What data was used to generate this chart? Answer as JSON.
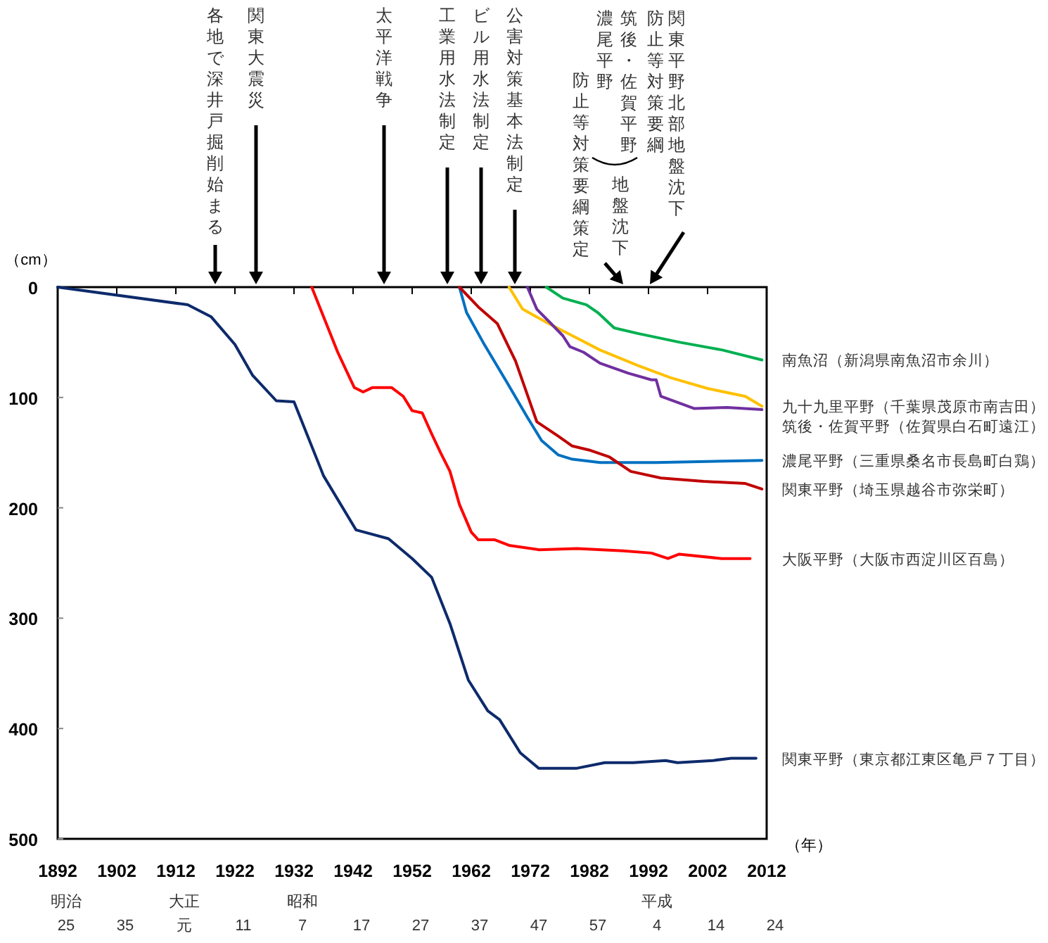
{
  "chart_data": {
    "type": "line",
    "xlabel": "（年）",
    "ylabel": "（cm）",
    "xlim": [
      1892,
      2012
    ],
    "xticks": [
      1892,
      1902,
      1912,
      1922,
      1932,
      1942,
      1952,
      1962,
      1972,
      1982,
      1992,
      2002,
      2012
    ],
    "ylim": [
      500,
      0
    ],
    "yticks": [
      0,
      100,
      200,
      300,
      400,
      500
    ],
    "series": [
      {
        "name": "南魚沼（新潟県南魚沼市余川）",
        "color": "#00b050",
        "x": [
          1974.7,
          1977.5,
          1981.5,
          1983.4,
          1986.2,
          1990.2,
          1997.3,
          2004.5,
          2011.2
        ],
        "values": [
          0,
          10,
          16,
          23,
          37,
          42,
          50,
          57,
          66
        ]
      },
      {
        "name": "九十九里平野（千葉県茂原市南吉田）",
        "color": "#ffc000",
        "x": [
          1968.4,
          1970.7,
          1975.1,
          1979.1,
          1983.8,
          1990.2,
          1995.7,
          2002.1,
          2008.4,
          2011.2
        ],
        "values": [
          0,
          20,
          33,
          44,
          57,
          71,
          82,
          92,
          99,
          108
        ]
      },
      {
        "name": "筑後・佐賀平野（佐賀県白石町遠江）",
        "color": "#7030a0",
        "x": [
          1971.5,
          1973.1,
          1975.5,
          1977.5,
          1978.7,
          1981,
          1983.8,
          1988.6,
          1992.5,
          1993.3,
          1994.1,
          1999.7,
          2005.3,
          2011.2
        ],
        "values": [
          0,
          20,
          33,
          44,
          54,
          59,
          69,
          78,
          84,
          84,
          99,
          110,
          109,
          111
        ]
      },
      {
        "name": "濃尾平野（三重県桑名市長島町白鶏）",
        "color": "#0070c0",
        "x": [
          1960,
          1961.2,
          1964,
          1968,
          1971.5,
          1973.9,
          1976.7,
          1979.1,
          1983.8,
          1993.3,
          2011.2
        ],
        "values": [
          0,
          23,
          50,
          86,
          118,
          139,
          152,
          156,
          159,
          159,
          157
        ]
      },
      {
        "name": "関東平野（埼玉県越谷市弥栄町）",
        "color": "#c00000",
        "x": [
          1960,
          1963.2,
          1966.4,
          1969.5,
          1973.1,
          1976.7,
          1979.1,
          1982.2,
          1985.4,
          1989,
          1994.1,
          2001.3,
          2008.4,
          2011.2
        ],
        "values": [
          0,
          18,
          33,
          67,
          122,
          135,
          144,
          148,
          154,
          167,
          173,
          176,
          178,
          183
        ]
      },
      {
        "name": "大阪平野（大阪市西淀川区百島）",
        "color": "#ff0000",
        "x": [
          1935,
          1939.4,
          1942.2,
          1943.7,
          1945.3,
          1948.5,
          1950.5,
          1952,
          1953.7,
          1955.3,
          1956.8,
          1958.4,
          1960,
          1962,
          1963.2,
          1966,
          1968.4,
          1973.5,
          1979.9,
          1987.7,
          1992.5,
          1995.3,
          1997.2,
          2004.4,
          2009.2
        ],
        "values": [
          0,
          59,
          91,
          95,
          91,
          91,
          99,
          112,
          114,
          133,
          150,
          167,
          197,
          222,
          229,
          229,
          234,
          238,
          237,
          239,
          241,
          246,
          242,
          246,
          246
        ]
      },
      {
        "name": "関東平野（東京都江東区亀戸７丁目）",
        "color": "#0d2a6b",
        "x": [
          1892,
          1914,
          1918,
          1922,
          1925,
          1929,
          1932,
          1937,
          1942.5,
          1948,
          1952,
          1955.3,
          1958.4,
          1961.5,
          1964.8,
          1966.8,
          1970.3,
          1973.4,
          1979.9,
          1984.6,
          1989.4,
          1994.9,
          1996.9,
          2002.9,
          2006,
          2010.2
        ],
        "values": [
          0,
          16,
          27,
          52,
          80,
          103,
          104,
          171,
          220,
          228,
          246,
          263,
          305,
          356,
          384,
          392,
          422,
          436,
          436,
          431,
          431,
          429,
          431,
          429,
          427,
          427
        ]
      }
    ],
    "annotations": [
      "明治25",
      "35",
      "大正元",
      "11",
      "昭和7",
      "17",
      "27",
      "37",
      "47",
      "57",
      "平成4",
      "14",
      "24",
      "各地で深井戸掘削始まる",
      "関東大震災",
      "太平洋戦争",
      "工業用水法制定",
      "ビル用水法制定",
      "公害対策基本法制定",
      "濃尾平野",
      "筑後・佐賀平野",
      "地盤沈下",
      "防止等対策要綱策定",
      "関東平野北部地盤沈下",
      "防止等対策要綱"
    ]
  }
}
